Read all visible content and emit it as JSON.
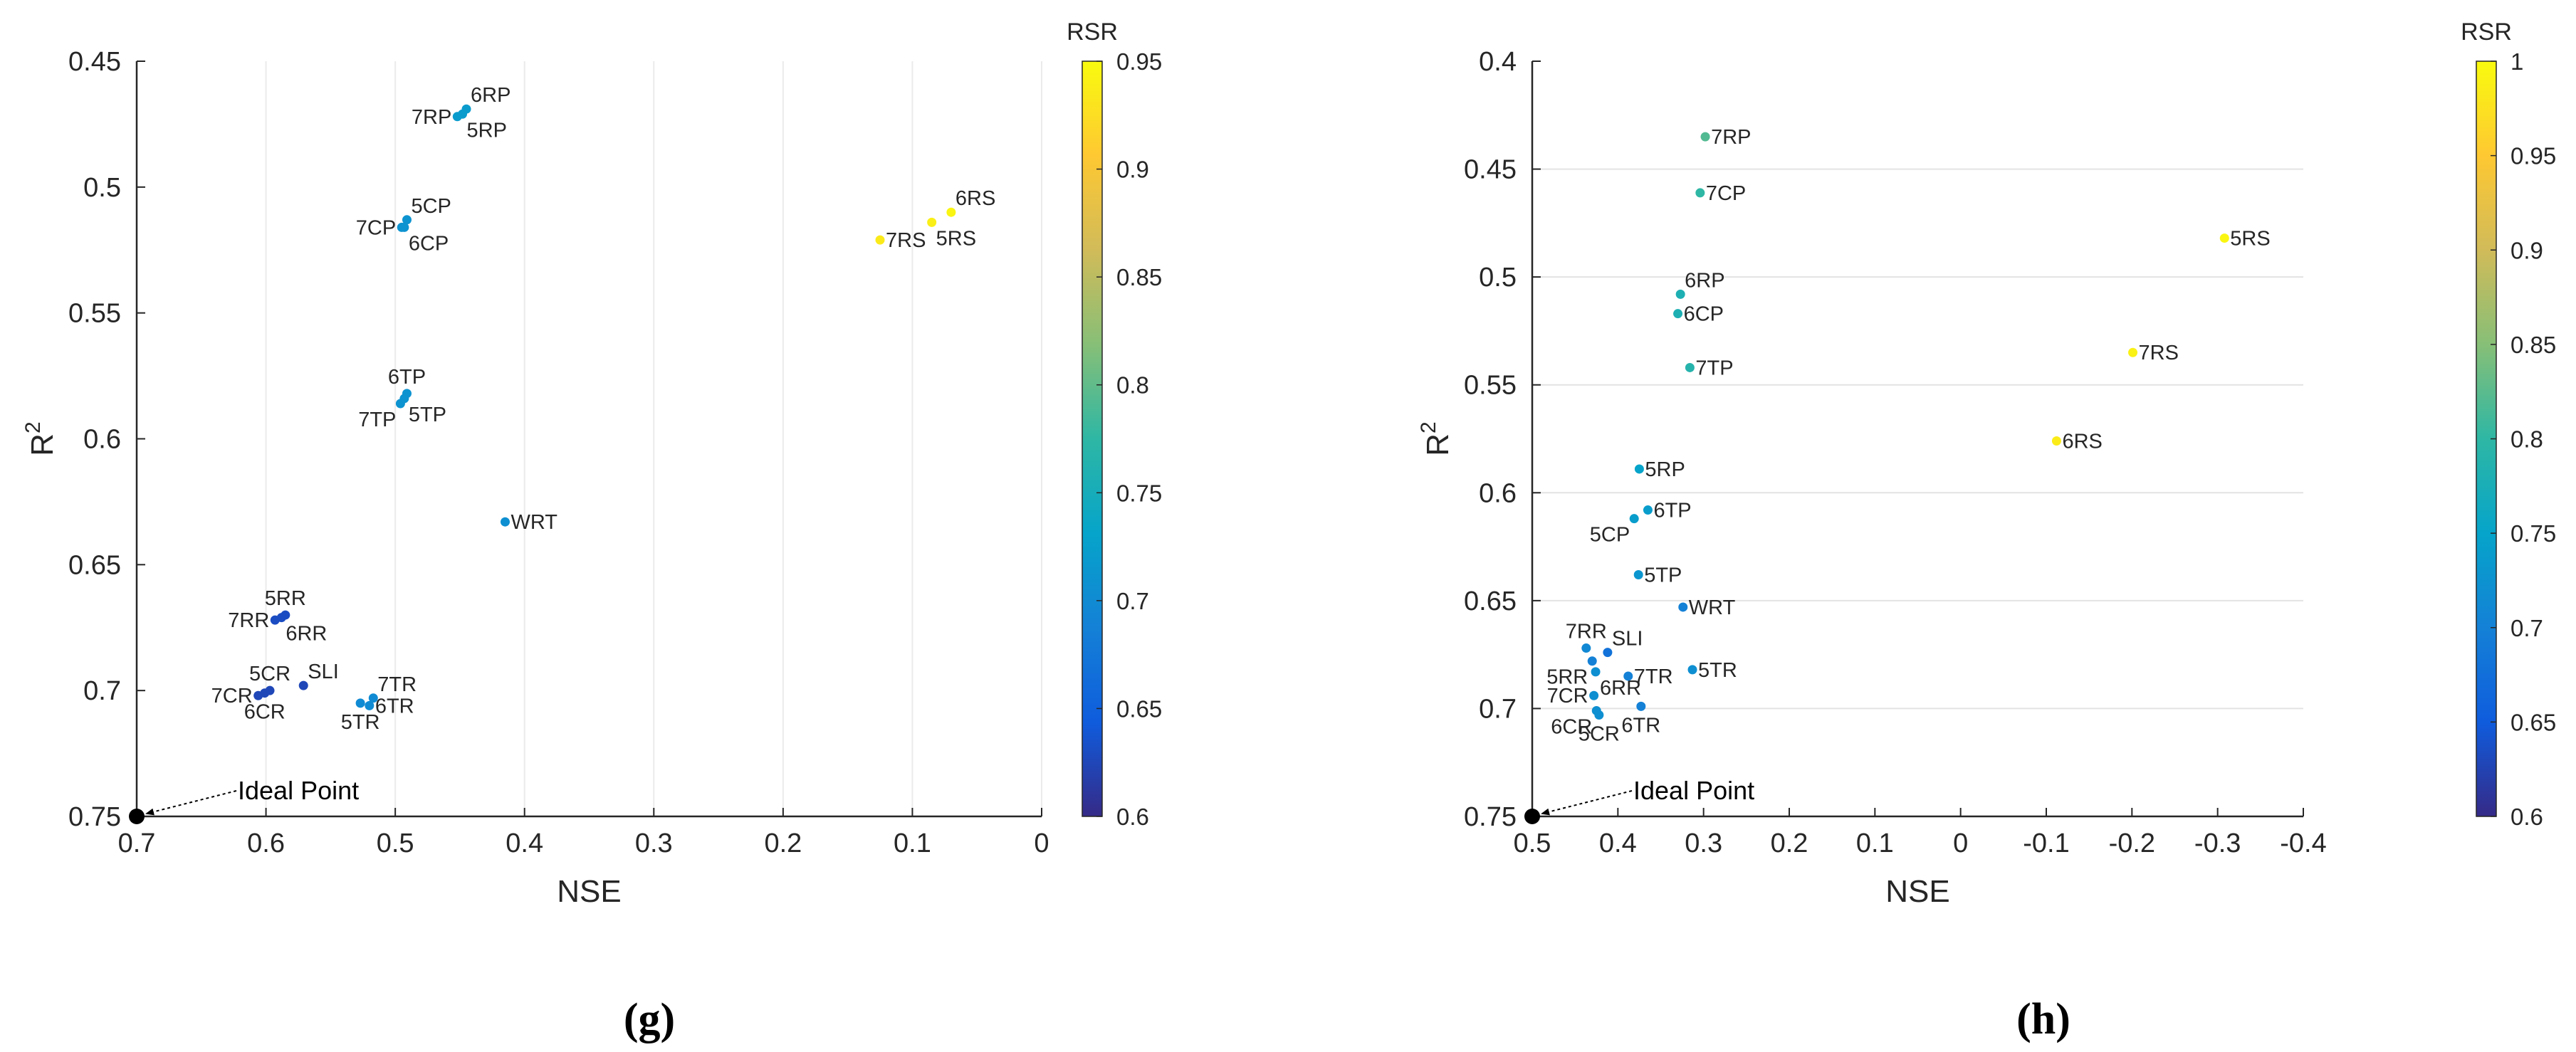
{
  "chart_data": [
    {
      "type": "scatter",
      "panel": "(g)",
      "xlabel": "NSE",
      "ylabel": "R",
      "ylabel_sup": "2",
      "xlim": [
        0.7,
        0
      ],
      "ylim": [
        0.45,
        0.75
      ],
      "x_reversed": true,
      "y_reversed": true,
      "xticks": [
        0.7,
        0.6,
        0.5,
        0.4,
        0.3,
        0.2,
        0.1,
        0
      ],
      "xtick_labels": [
        "0.7",
        "0.6",
        "0.5",
        "0.4",
        "0.3",
        "0.2",
        "0.1",
        "0"
      ],
      "yticks": [
        0.45,
        0.5,
        0.55,
        0.6,
        0.65,
        0.7,
        0.75
      ],
      "ytick_labels": [
        "0.45",
        "0.5",
        "0.55",
        "0.6",
        "0.65",
        "0.7",
        "0.75"
      ],
      "grid": "vertical",
      "colorbar": {
        "title": "RSR",
        "min": 0.6,
        "max": 0.95,
        "ticks": [
          0.6,
          0.65,
          0.7,
          0.75,
          0.8,
          0.85,
          0.9,
          0.95
        ],
        "tick_labels": [
          "0.6",
          "0.65",
          "0.7",
          "0.75",
          "0.8",
          "0.85",
          "0.9",
          "0.95"
        ]
      },
      "ideal_point": {
        "nse": 0.7,
        "r2": 0.75,
        "label": "Ideal Point"
      },
      "points": [
        {
          "label": "6RP",
          "nse": 0.445,
          "r2": 0.469,
          "rsr": 0.72,
          "anchor": "ne"
        },
        {
          "label": "7RP",
          "nse": 0.452,
          "r2": 0.472,
          "rsr": 0.72,
          "anchor": "w"
        },
        {
          "label": "5RP",
          "nse": 0.448,
          "r2": 0.471,
          "rsr": 0.72,
          "anchor": "se"
        },
        {
          "label": "5CP",
          "nse": 0.491,
          "r2": 0.513,
          "rsr": 0.71,
          "anchor": "ne"
        },
        {
          "label": "7CP",
          "nse": 0.495,
          "r2": 0.516,
          "rsr": 0.71,
          "anchor": "w"
        },
        {
          "label": "6CP",
          "nse": 0.493,
          "r2": 0.516,
          "rsr": 0.71,
          "anchor": "se"
        },
        {
          "label": "6RS",
          "nse": 0.07,
          "r2": 0.51,
          "rsr": 0.945,
          "anchor": "ne"
        },
        {
          "label": "5RS",
          "nse": 0.085,
          "r2": 0.514,
          "rsr": 0.94,
          "anchor": "se"
        },
        {
          "label": "7RS",
          "nse": 0.125,
          "r2": 0.521,
          "rsr": 0.935,
          "anchor": "e"
        },
        {
          "label": "6TP",
          "nse": 0.491,
          "r2": 0.582,
          "rsr": 0.71,
          "anchor": "n"
        },
        {
          "label": "7TP",
          "nse": 0.496,
          "r2": 0.586,
          "rsr": 0.71,
          "anchor": "sw"
        },
        {
          "label": "5TP",
          "nse": 0.493,
          "r2": 0.584,
          "rsr": 0.71,
          "anchor": "se"
        },
        {
          "label": "WRT",
          "nse": 0.415,
          "r2": 0.633,
          "rsr": 0.705,
          "anchor": "e"
        },
        {
          "label": "5RR",
          "nse": 0.585,
          "r2": 0.67,
          "rsr": 0.63,
          "anchor": "n"
        },
        {
          "label": "7RR",
          "nse": 0.593,
          "r2": 0.672,
          "rsr": 0.63,
          "anchor": "w"
        },
        {
          "label": "6RR",
          "nse": 0.588,
          "r2": 0.671,
          "rsr": 0.63,
          "anchor": "se"
        },
        {
          "label": "5CR",
          "nse": 0.597,
          "r2": 0.7,
          "rsr": 0.625,
          "anchor": "n"
        },
        {
          "label": "7CR",
          "nse": 0.606,
          "r2": 0.702,
          "rsr": 0.625,
          "anchor": "w"
        },
        {
          "label": "6CR",
          "nse": 0.601,
          "r2": 0.701,
          "rsr": 0.625,
          "anchor": "s"
        },
        {
          "label": "SLI",
          "nse": 0.571,
          "r2": 0.698,
          "rsr": 0.625,
          "anchor": "ne"
        },
        {
          "label": "7TR",
          "nse": 0.517,
          "r2": 0.703,
          "rsr": 0.7,
          "anchor": "ne"
        },
        {
          "label": "6TR",
          "nse": 0.52,
          "r2": 0.706,
          "rsr": 0.7,
          "anchor": "e"
        },
        {
          "label": "5TR",
          "nse": 0.527,
          "r2": 0.705,
          "rsr": 0.7,
          "anchor": "s"
        }
      ]
    },
    {
      "type": "scatter",
      "panel": "(h)",
      "xlabel": "NSE",
      "ylabel": "R",
      "ylabel_sup": "2",
      "xlim": [
        0.5,
        -0.4
      ],
      "ylim": [
        0.4,
        0.75
      ],
      "x_reversed": true,
      "y_reversed": true,
      "xticks": [
        0.5,
        0.4,
        0.3,
        0.2,
        0.1,
        0,
        -0.1,
        -0.2,
        -0.3,
        -0.4
      ],
      "xtick_labels": [
        "0.5",
        "0.4",
        "0.3",
        "0.2",
        "0.1",
        "0",
        "-0.1",
        "-0.2",
        "-0.3",
        "-0.4"
      ],
      "yticks": [
        0.4,
        0.45,
        0.5,
        0.55,
        0.6,
        0.65,
        0.7,
        0.75
      ],
      "ytick_labels": [
        "0.4",
        "0.45",
        "0.5",
        "0.55",
        "0.6",
        "0.65",
        "0.7",
        "0.75"
      ],
      "grid": "horizontal",
      "colorbar": {
        "title": "RSR",
        "min": 0.6,
        "max": 1,
        "ticks": [
          0.6,
          0.65,
          0.7,
          0.75,
          0.8,
          0.85,
          0.9,
          0.95,
          1
        ],
        "tick_labels": [
          "0.6",
          "0.65",
          "0.7",
          "0.75",
          "0.8",
          "0.85",
          "0.9",
          "0.95",
          "1"
        ]
      },
      "ideal_point": {
        "nse": 0.5,
        "r2": 0.75,
        "label": "Ideal Point"
      },
      "points": [
        {
          "label": "7RP",
          "nse": 0.298,
          "r2": 0.435,
          "rsr": 0.82,
          "anchor": "e"
        },
        {
          "label": "7CP",
          "nse": 0.304,
          "r2": 0.461,
          "rsr": 0.8,
          "anchor": "e"
        },
        {
          "label": "5RS",
          "nse": -0.308,
          "r2": 0.482,
          "rsr": 0.995,
          "anchor": "e"
        },
        {
          "label": "6RP",
          "nse": 0.327,
          "r2": 0.508,
          "rsr": 0.78,
          "anchor": "ne"
        },
        {
          "label": "6CP",
          "nse": 0.33,
          "r2": 0.517,
          "rsr": 0.78,
          "anchor": "e"
        },
        {
          "label": "7RS",
          "nse": -0.201,
          "r2": 0.535,
          "rsr": 0.99,
          "anchor": "e"
        },
        {
          "label": "7TP",
          "nse": 0.316,
          "r2": 0.542,
          "rsr": 0.79,
          "anchor": "e"
        },
        {
          "label": "6RS",
          "nse": -0.112,
          "r2": 0.576,
          "rsr": 0.985,
          "anchor": "e"
        },
        {
          "label": "5RP",
          "nse": 0.375,
          "r2": 0.589,
          "rsr": 0.75,
          "anchor": "e"
        },
        {
          "label": "6TP",
          "nse": 0.365,
          "r2": 0.608,
          "rsr": 0.74,
          "anchor": "e"
        },
        {
          "label": "5CP",
          "nse": 0.381,
          "r2": 0.612,
          "rsr": 0.74,
          "anchor": "sw"
        },
        {
          "label": "5TP",
          "nse": 0.376,
          "r2": 0.638,
          "rsr": 0.73,
          "anchor": "e"
        },
        {
          "label": "WRT",
          "nse": 0.324,
          "r2": 0.653,
          "rsr": 0.7,
          "anchor": "e"
        },
        {
          "label": "7RR",
          "nse": 0.437,
          "r2": 0.672,
          "rsr": 0.71,
          "anchor": "n"
        },
        {
          "label": "SLI",
          "nse": 0.412,
          "r2": 0.674,
          "rsr": 0.68,
          "anchor": "ne"
        },
        {
          "label": "5RR",
          "nse": 0.43,
          "r2": 0.678,
          "rsr": 0.7,
          "anchor": "sw"
        },
        {
          "label": "6RR",
          "nse": 0.426,
          "r2": 0.683,
          "rsr": 0.72,
          "anchor": "se"
        },
        {
          "label": "7TR",
          "nse": 0.388,
          "r2": 0.685,
          "rsr": 0.7,
          "anchor": "e"
        },
        {
          "label": "5TR",
          "nse": 0.313,
          "r2": 0.682,
          "rsr": 0.72,
          "anchor": "e"
        },
        {
          "label": "7CR",
          "nse": 0.428,
          "r2": 0.694,
          "rsr": 0.72,
          "anchor": "w"
        },
        {
          "label": "6TR",
          "nse": 0.373,
          "r2": 0.699,
          "rsr": 0.7,
          "anchor": "s"
        },
        {
          "label": "6CR",
          "nse": 0.425,
          "r2": 0.701,
          "rsr": 0.72,
          "anchor": "sw"
        },
        {
          "label": "5CR",
          "nse": 0.422,
          "r2": 0.703,
          "rsr": 0.72,
          "anchor": "s"
        }
      ]
    }
  ]
}
